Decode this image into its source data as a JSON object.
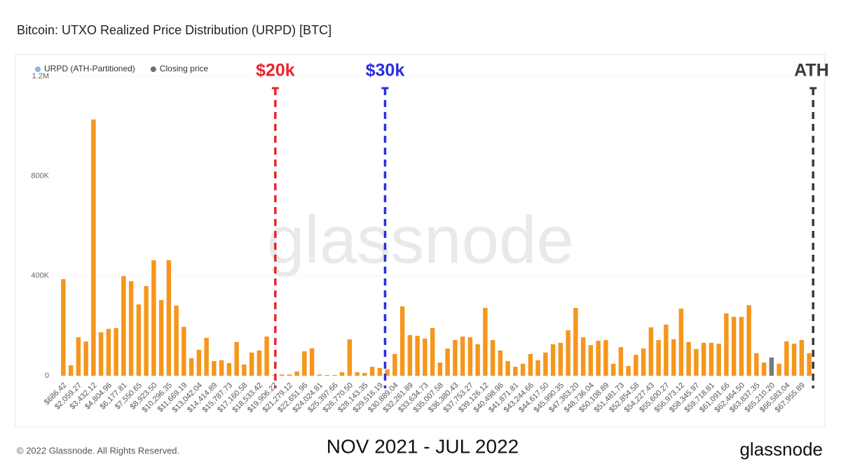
{
  "chart_data": {
    "type": "bar",
    "title": "Bitcoin: UTXO Realized Price Distribution (URPD) [BTC]",
    "subtitle": "NOV 2021 - JUL 2022",
    "footer": "© 2022 Glassnode. All Rights Reserved.",
    "brand": "glassnode",
    "watermark": "glassnode",
    "categories": [
      "$686.42",
      null,
      "$2,059.27",
      null,
      "$3,432.12",
      null,
      "$4,804.96",
      null,
      "$6,177.81",
      null,
      "$7,550.65",
      null,
      "$8,923.50",
      null,
      "$10,296.35",
      null,
      "$11,669.19",
      null,
      "$13,042.04",
      null,
      "$14,414.89",
      null,
      "$15,787.73",
      null,
      "$17,160.58",
      null,
      "$18,533.42",
      null,
      "$19,906.27",
      null,
      "$21,279.12",
      null,
      "$22,651.96",
      null,
      "$24,024.81",
      null,
      "$25,397.66",
      null,
      "$26,770.50",
      null,
      "$28,143.35",
      null,
      "$29,516.19",
      null,
      "$30,889.04",
      null,
      "$32,261.89",
      null,
      "$33,634.73",
      null,
      "$35,007.58",
      null,
      "$36,380.43",
      null,
      "$37,753.27",
      null,
      "$39,126.12",
      null,
      "$40,498.96",
      null,
      "$41,871.81",
      null,
      "$43,244.66",
      null,
      "$44,617.50",
      null,
      "$45,990.35",
      null,
      "$47,363.20",
      null,
      "$48,736.04",
      null,
      "$50,108.89",
      null,
      "$51,481.73",
      null,
      "$52,854.58",
      null,
      "$54,227.43",
      null,
      "$55,600.27",
      null,
      "$56,973.12",
      null,
      "$58,345.97",
      null,
      "$59,718.81",
      null,
      "$61,091.66",
      null,
      "$62,464.50",
      null,
      "$63,837.35",
      null,
      "$65,210.20",
      null,
      "$66,583.04",
      null,
      "$67,955.89",
      null
    ],
    "series": [
      {
        "name": "URPD (ATH-Partitioned)",
        "color": "#f5961d",
        "legend_color": "#8ab4ea",
        "values": [
          387000,
          42000,
          154000,
          137000,
          1027000,
          174000,
          188000,
          191000,
          399000,
          379000,
          286000,
          359000,
          463000,
          303000,
          463000,
          281000,
          196000,
          70000,
          104000,
          152000,
          59000,
          62000,
          51000,
          135000,
          45000,
          93000,
          101000,
          157000,
          2000,
          5000,
          5000,
          17000,
          98000,
          110000,
          5000,
          3000,
          3000,
          14000,
          146000,
          14000,
          11000,
          36000,
          31000,
          25000,
          87000,
          278000,
          163000,
          160000,
          149000,
          191000,
          53000,
          109000,
          143000,
          157000,
          154000,
          126000,
          272000,
          143000,
          101000,
          59000,
          36000,
          48000,
          87000,
          62000,
          93000,
          126000,
          132000,
          182000,
          272000,
          154000,
          123000,
          140000,
          143000,
          48000,
          115000,
          39000,
          84000,
          109000,
          194000,
          143000,
          205000,
          146000,
          269000,
          135000,
          107000,
          132000,
          132000,
          128000,
          250000,
          236000,
          236000,
          283000,
          90000,
          53000,
          null,
          48000,
          138000,
          128000,
          143000,
          90000
        ]
      },
      {
        "name": "Closing price",
        "color": "#7a7a7a",
        "legend_color": "#6e6e6e",
        "values": [
          null,
          null,
          null,
          null,
          null,
          null,
          null,
          null,
          null,
          null,
          null,
          null,
          null,
          null,
          null,
          null,
          null,
          null,
          null,
          null,
          null,
          null,
          null,
          null,
          null,
          null,
          null,
          null,
          null,
          null,
          null,
          null,
          null,
          null,
          null,
          null,
          null,
          null,
          null,
          null,
          null,
          null,
          null,
          null,
          null,
          null,
          null,
          null,
          null,
          null,
          null,
          null,
          null,
          null,
          null,
          null,
          null,
          null,
          null,
          null,
          null,
          null,
          null,
          null,
          null,
          null,
          null,
          null,
          null,
          null,
          null,
          null,
          null,
          null,
          null,
          null,
          null,
          null,
          null,
          null,
          null,
          null,
          null,
          null,
          null,
          null,
          null,
          null,
          null,
          null,
          null,
          null,
          null,
          null,
          73000,
          null,
          null,
          null,
          null,
          null
        ]
      }
    ],
    "ylim": [
      0,
      1200000
    ],
    "yticks": [
      {
        "value": 0,
        "label": "0"
      },
      {
        "value": 400000,
        "label": "400K"
      },
      {
        "value": 800000,
        "label": "800K"
      },
      {
        "value": 1200000,
        "label": "1.2M"
      }
    ],
    "grid": true,
    "annotations": [
      {
        "label": "$20k",
        "value": 20000,
        "color": "#e8262c"
      },
      {
        "label": "$30k",
        "value": 30000,
        "color": "#2b2fe0"
      },
      {
        "label": "ATH",
        "value": 69000,
        "color": "#3a3a3a"
      }
    ]
  }
}
